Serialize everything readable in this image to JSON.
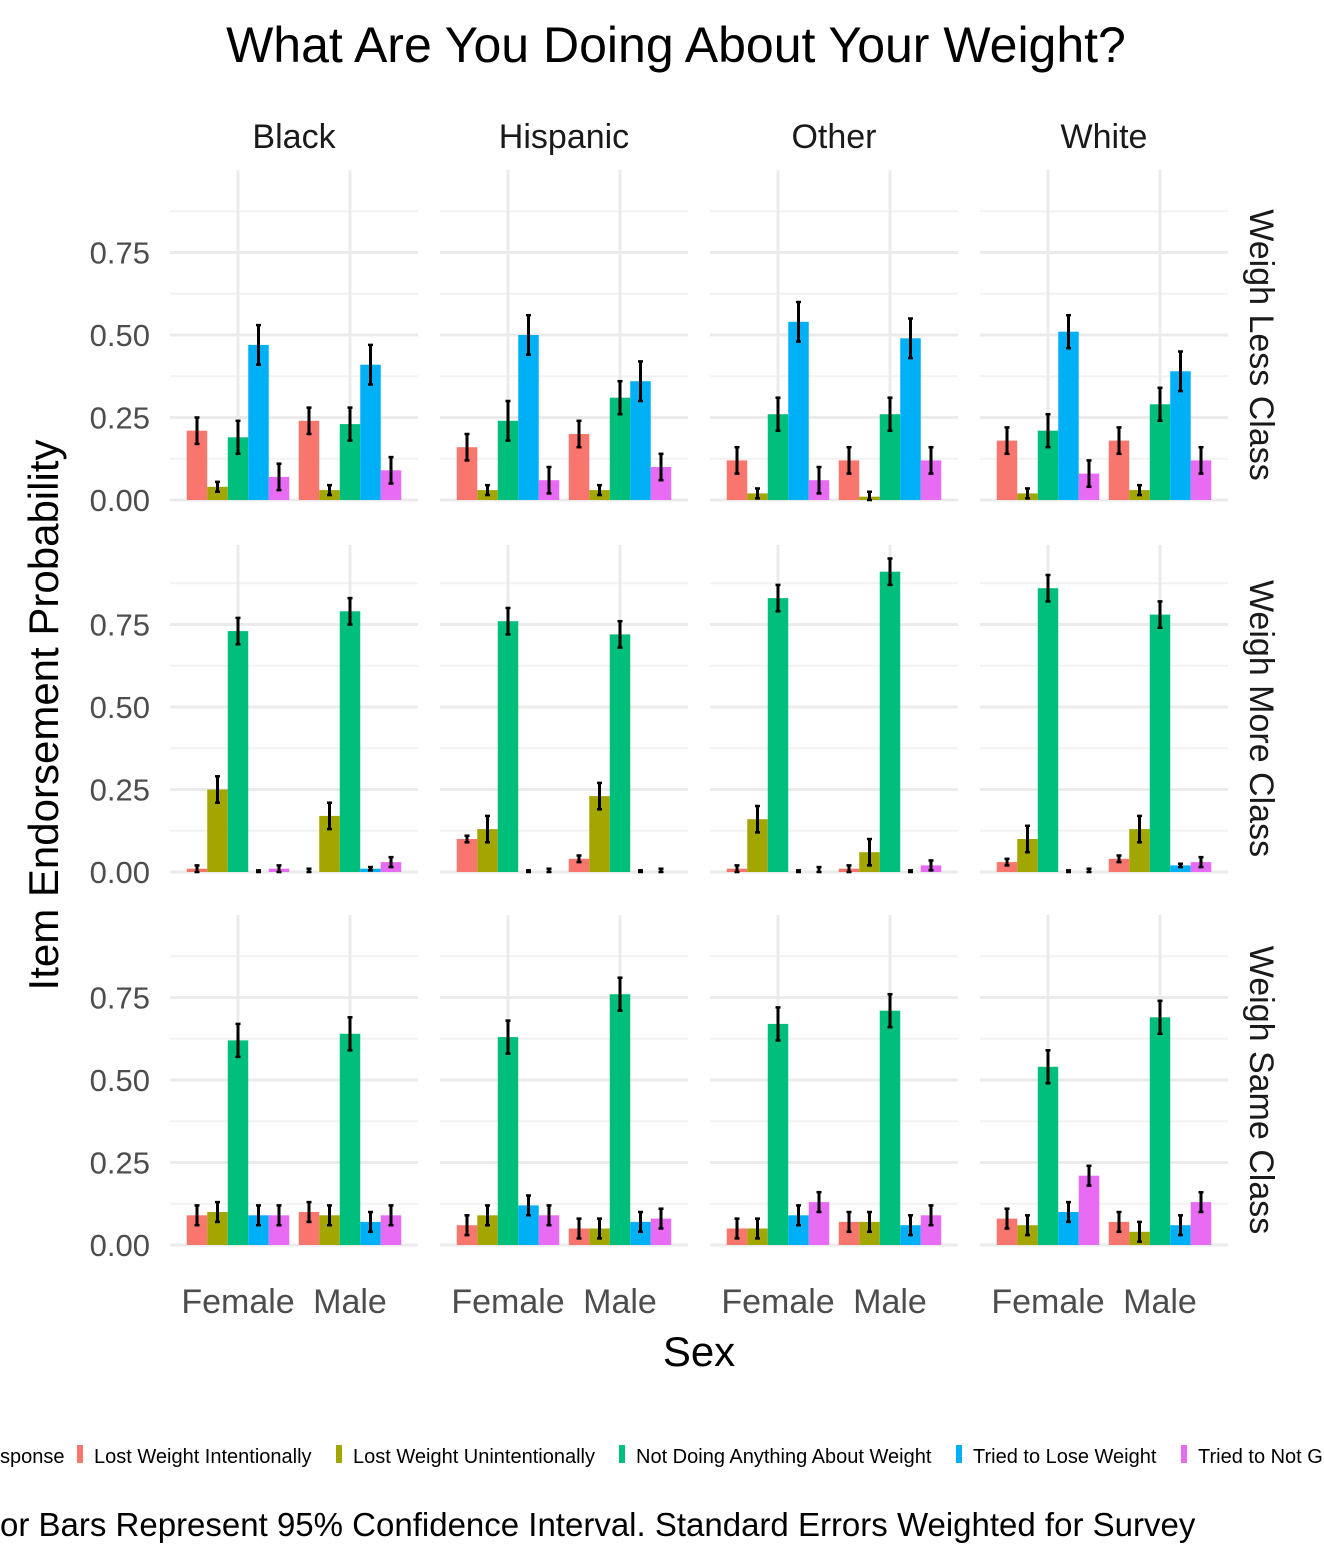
{
  "chart_data": {
    "type": "bar",
    "title": "What Are You Doing About Your Weight?",
    "xlabel": "Sex",
    "ylabel": "Item Endorsement Probability",
    "caption": "or Bars Represent 95% Confidence Interval. Standard Errors Weighted for Survey",
    "legend_placement": "bottom",
    "legend_lead": "sponse",
    "ylim": [
      0,
      0.95
    ],
    "y_ticks": [
      0.0,
      0.25,
      0.5,
      0.75
    ],
    "y_tick_labels": [
      "0.00",
      "0.25",
      "0.50",
      "0.75"
    ],
    "grid": true,
    "columns": [
      "Black",
      "Hispanic",
      "Other",
      "White"
    ],
    "rows": [
      "Weigh Less Class",
      "Weigh More Class",
      "Weigh Same Class"
    ],
    "categories": [
      "Female",
      "Male"
    ],
    "series": [
      {
        "name": "Lost Weight Intentionally",
        "color": "#F8766D"
      },
      {
        "name": "Lost Weight Unintentionally",
        "color": "#A3A500"
      },
      {
        "name": "Not Doing Anything About Weight",
        "color": "#00BF7D"
      },
      {
        "name": "Tried to Lose Weight",
        "color": "#00B0F6"
      },
      {
        "name": "Tried to Not G",
        "color": "#E76BF3"
      }
    ],
    "panels": {
      "Weigh Less Class": {
        "Black": {
          "Female": [
            [
              0.21,
              0.04
            ],
            [
              0.04,
              0.015
            ],
            [
              0.19,
              0.05
            ],
            [
              0.47,
              0.06
            ],
            [
              0.07,
              0.04
            ]
          ],
          "Male": [
            [
              0.24,
              0.04
            ],
            [
              0.03,
              0.015
            ],
            [
              0.23,
              0.05
            ],
            [
              0.41,
              0.06
            ],
            [
              0.09,
              0.04
            ]
          ]
        },
        "Hispanic": {
          "Female": [
            [
              0.16,
              0.04
            ],
            [
              0.03,
              0.015
            ],
            [
              0.24,
              0.06
            ],
            [
              0.5,
              0.06
            ],
            [
              0.06,
              0.04
            ]
          ],
          "Male": [
            [
              0.2,
              0.04
            ],
            [
              0.03,
              0.015
            ],
            [
              0.31,
              0.05
            ],
            [
              0.36,
              0.06
            ],
            [
              0.1,
              0.04
            ]
          ]
        },
        "Other": {
          "Female": [
            [
              0.12,
              0.04
            ],
            [
              0.02,
              0.015
            ],
            [
              0.26,
              0.05
            ],
            [
              0.54,
              0.06
            ],
            [
              0.06,
              0.04
            ]
          ],
          "Male": [
            [
              0.12,
              0.04
            ],
            [
              0.01,
              0.015
            ],
            [
              0.26,
              0.05
            ],
            [
              0.49,
              0.06
            ],
            [
              0.12,
              0.04
            ]
          ]
        },
        "White": {
          "Female": [
            [
              0.18,
              0.04
            ],
            [
              0.02,
              0.015
            ],
            [
              0.21,
              0.05
            ],
            [
              0.51,
              0.05
            ],
            [
              0.08,
              0.04
            ]
          ],
          "Male": [
            [
              0.18,
              0.04
            ],
            [
              0.03,
              0.015
            ],
            [
              0.29,
              0.05
            ],
            [
              0.39,
              0.06
            ],
            [
              0.12,
              0.04
            ]
          ]
        }
      },
      "Weigh More Class": {
        "Black": {
          "Female": [
            [
              0.01,
              0.01
            ],
            [
              0.25,
              0.04
            ],
            [
              0.73,
              0.04
            ],
            [
              0.0,
              0.005
            ],
            [
              0.01,
              0.01
            ]
          ],
          "Male": [
            [
              0.0,
              0.01
            ],
            [
              0.17,
              0.04
            ],
            [
              0.79,
              0.04
            ],
            [
              0.01,
              0.005
            ],
            [
              0.03,
              0.015
            ]
          ]
        },
        "Hispanic": {
          "Female": [
            [
              0.1,
              0.01
            ],
            [
              0.13,
              0.04
            ],
            [
              0.76,
              0.04
            ],
            [
              0.0,
              0.005
            ],
            [
              0.0,
              0.01
            ]
          ],
          "Male": [
            [
              0.04,
              0.01
            ],
            [
              0.23,
              0.04
            ],
            [
              0.72,
              0.04
            ],
            [
              0.0,
              0.005
            ],
            [
              0.0,
              0.01
            ]
          ]
        },
        "Other": {
          "Female": [
            [
              0.01,
              0.01
            ],
            [
              0.16,
              0.04
            ],
            [
              0.83,
              0.04
            ],
            [
              0.0,
              0.005
            ],
            [
              0.0,
              0.015
            ]
          ],
          "Male": [
            [
              0.01,
              0.01
            ],
            [
              0.06,
              0.04
            ],
            [
              0.91,
              0.04
            ],
            [
              0.0,
              0.005
            ],
            [
              0.02,
              0.015
            ]
          ]
        },
        "White": {
          "Female": [
            [
              0.03,
              0.01
            ],
            [
              0.1,
              0.04
            ],
            [
              0.86,
              0.04
            ],
            [
              0.0,
              0.005
            ],
            [
              0.0,
              0.01
            ]
          ],
          "Male": [
            [
              0.04,
              0.01
            ],
            [
              0.13,
              0.04
            ],
            [
              0.78,
              0.04
            ],
            [
              0.02,
              0.005
            ],
            [
              0.03,
              0.015
            ]
          ]
        }
      },
      "Weigh Same Class": {
        "Black": {
          "Female": [
            [
              0.09,
              0.03
            ],
            [
              0.1,
              0.03
            ],
            [
              0.62,
              0.05
            ],
            [
              0.09,
              0.03
            ],
            [
              0.09,
              0.03
            ]
          ],
          "Male": [
            [
              0.1,
              0.03
            ],
            [
              0.09,
              0.03
            ],
            [
              0.64,
              0.05
            ],
            [
              0.07,
              0.03
            ],
            [
              0.09,
              0.03
            ]
          ]
        },
        "Hispanic": {
          "Female": [
            [
              0.06,
              0.03
            ],
            [
              0.09,
              0.03
            ],
            [
              0.63,
              0.05
            ],
            [
              0.12,
              0.03
            ],
            [
              0.09,
              0.03
            ]
          ],
          "Male": [
            [
              0.05,
              0.03
            ],
            [
              0.05,
              0.03
            ],
            [
              0.76,
              0.05
            ],
            [
              0.07,
              0.03
            ],
            [
              0.08,
              0.03
            ]
          ]
        },
        "Other": {
          "Female": [
            [
              0.05,
              0.03
            ],
            [
              0.05,
              0.03
            ],
            [
              0.67,
              0.05
            ],
            [
              0.09,
              0.03
            ],
            [
              0.13,
              0.03
            ]
          ],
          "Male": [
            [
              0.07,
              0.03
            ],
            [
              0.07,
              0.03
            ],
            [
              0.71,
              0.05
            ],
            [
              0.06,
              0.03
            ],
            [
              0.09,
              0.03
            ]
          ]
        },
        "White": {
          "Female": [
            [
              0.08,
              0.03
            ],
            [
              0.06,
              0.03
            ],
            [
              0.54,
              0.05
            ],
            [
              0.1,
              0.03
            ],
            [
              0.21,
              0.03
            ]
          ],
          "Male": [
            [
              0.07,
              0.03
            ],
            [
              0.04,
              0.03
            ],
            [
              0.69,
              0.05
            ],
            [
              0.06,
              0.03
            ],
            [
              0.13,
              0.03
            ]
          ]
        }
      }
    }
  }
}
